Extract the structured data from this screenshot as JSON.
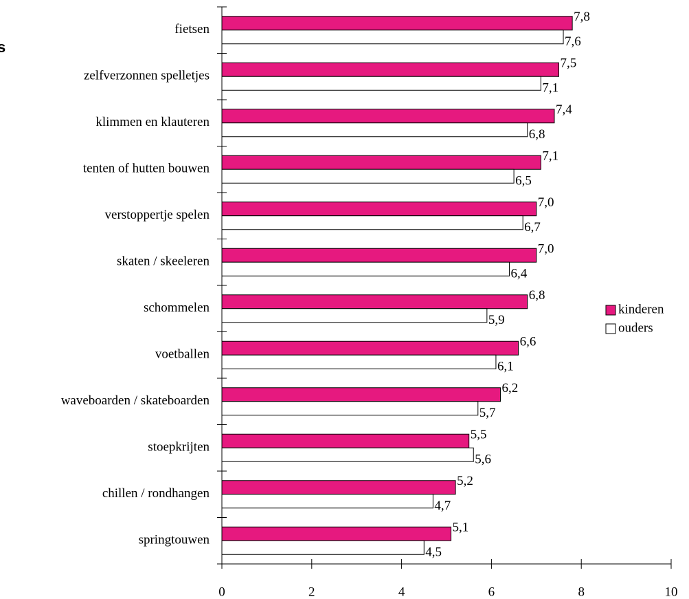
{
  "chart_data": {
    "type": "bar",
    "orientation": "horizontal",
    "annotation": "s",
    "categories": [
      "fietsen",
      "zelfverzonnen spelletjes",
      "klimmen en klauteren",
      "tenten of hutten bouwen",
      "verstoppertje spelen",
      "skaten / skeeleren",
      "schommelen",
      "voetballen",
      "waveboarden / skateboarden",
      "stoepkrijten",
      "chillen / rondhangen",
      "springtouwen"
    ],
    "series": [
      {
        "name": "kinderen",
        "color": "#e6197f",
        "values": [
          7.8,
          7.5,
          7.4,
          7.1,
          7.0,
          7.0,
          6.8,
          6.6,
          6.2,
          5.5,
          5.2,
          5.1
        ],
        "value_labels": [
          "7,8",
          "7,5",
          "7,4",
          "7,1",
          "7,0",
          "7,0",
          "6,8",
          "6,6",
          "6,2",
          "5,5",
          "5,2",
          "5,1"
        ]
      },
      {
        "name": "ouders",
        "color": "#ffffff",
        "values": [
          7.6,
          7.1,
          6.8,
          6.5,
          6.7,
          6.4,
          5.9,
          6.1,
          5.7,
          5.6,
          4.7,
          4.5
        ],
        "value_labels": [
          "7,6",
          "7,1",
          "6,8",
          "6,5",
          "6,7",
          "6,4",
          "5,9",
          "6,1",
          "5,7",
          "5,6",
          "4,7",
          "4,5"
        ]
      }
    ],
    "xlim": [
      0,
      10
    ],
    "xticks": [
      0,
      2,
      4,
      6,
      8,
      10
    ],
    "legend": "right"
  }
}
